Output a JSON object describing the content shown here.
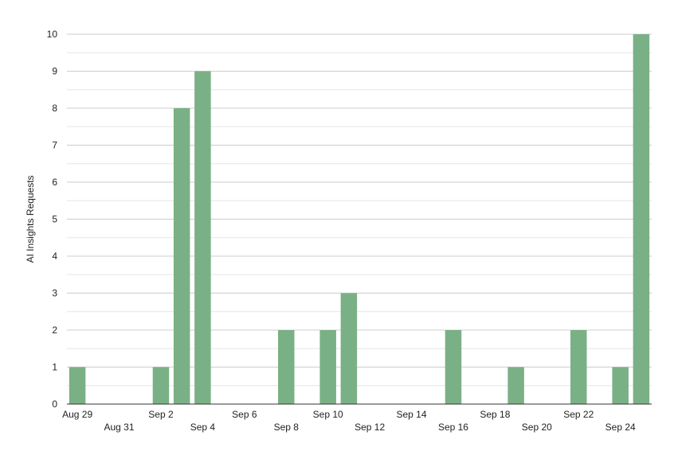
{
  "chart_data": {
    "type": "bar",
    "ylabel": "AI Insights Requests",
    "xlabel": "",
    "title": "",
    "ylim": [
      0,
      10
    ],
    "y_ticks": [
      0,
      1,
      2,
      3,
      4,
      5,
      6,
      7,
      8,
      9,
      10
    ],
    "grid": "horizontal",
    "bar_color": "#7ab085",
    "categories": [
      "Aug 29",
      "Aug 30",
      "Aug 31",
      "Sep 1",
      "Sep 2",
      "Sep 3",
      "Sep 4",
      "Sep 5",
      "Sep 6",
      "Sep 7",
      "Sep 8",
      "Sep 9",
      "Sep 10",
      "Sep 11",
      "Sep 12",
      "Sep 13",
      "Sep 14",
      "Sep 15",
      "Sep 16",
      "Sep 17",
      "Sep 18",
      "Sep 19",
      "Sep 20",
      "Sep 21",
      "Sep 22",
      "Sep 23",
      "Sep 24",
      "Sep 25"
    ],
    "values": [
      1,
      0,
      0,
      0,
      1,
      8,
      9,
      0,
      0,
      0,
      2,
      0,
      2,
      3,
      0,
      0,
      0,
      0,
      2,
      0,
      0,
      1,
      0,
      0,
      2,
      0,
      1,
      10
    ],
    "x_tick_labels": [
      "Aug 29",
      "Aug 31",
      "Sep 2",
      "Sep 4",
      "Sep 6",
      "Sep 8",
      "Sep 10",
      "Sep 12",
      "Sep 14",
      "Sep 16",
      "Sep 18",
      "Sep 20",
      "Sep 22",
      "Sep 24"
    ]
  }
}
